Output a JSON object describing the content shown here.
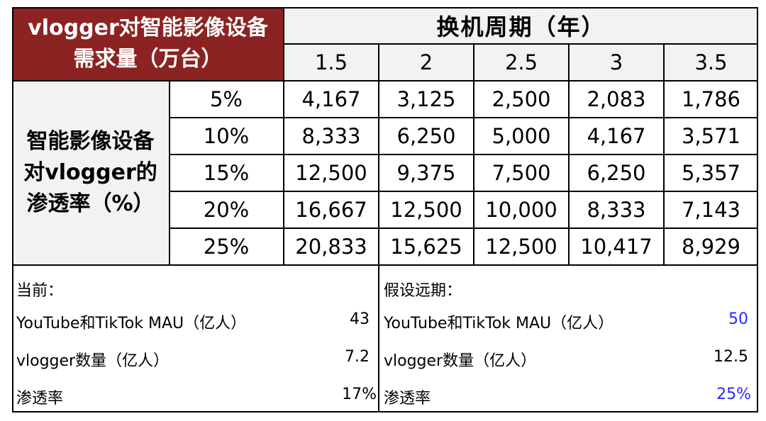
{
  "corner_label": "vlogger对智能影像设备需求量（万台）",
  "col_group_label": "换机周期（年）",
  "columns": [
    "1.5",
    "2",
    "2.5",
    "3",
    "3.5"
  ],
  "row_group_label": "智能影像设备对vlogger的渗透率（%）",
  "rows": [
    {
      "rate": "5%",
      "values": [
        "4,167",
        "3,125",
        "2,500",
        "2,083",
        "1,786"
      ]
    },
    {
      "rate": "10%",
      "values": [
        "8,333",
        "6,250",
        "5,000",
        "4,167",
        "3,571"
      ]
    },
    {
      "rate": "15%",
      "values": [
        "12,500",
        "9,375",
        "7,500",
        "6,250",
        "5,357"
      ]
    },
    {
      "rate": "20%",
      "values": [
        "16,667",
        "12,500",
        "10,000",
        "8,333",
        "7,143"
      ]
    },
    {
      "rate": "25%",
      "values": [
        "20,833",
        "15,625",
        "12,500",
        "10,417",
        "8,929"
      ]
    }
  ],
  "current": {
    "title": "当前：",
    "items": [
      {
        "label": "YouTube和TikTok MAU（亿人）",
        "value": "43"
      },
      {
        "label": "vlogger数量（亿人）",
        "value": "7.2"
      },
      {
        "label": "渗透率",
        "value": "17%"
      }
    ]
  },
  "future": {
    "title": "假设远期：",
    "items": [
      {
        "label": "YouTube和TikTok MAU（亿人）",
        "value": "50"
      },
      {
        "label": "vlogger数量（亿人）",
        "value": "12.5"
      },
      {
        "label": "渗透率",
        "value": "25%"
      }
    ]
  },
  "colors": {
    "header_red": "#8b2323",
    "header_grey": "#f2f2f2",
    "assumption_blue": "#2929ff"
  }
}
